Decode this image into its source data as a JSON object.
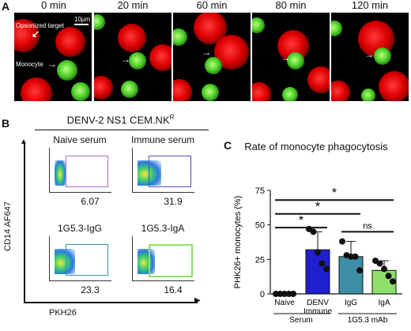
{
  "panelA": {
    "letter": "A",
    "timepoints": [
      "0 min",
      "20 min",
      "60 min",
      "80 min",
      "120 min"
    ],
    "scale_bar": "10μm",
    "label_target": "Opsonized target",
    "label_monocyte": "Monocyte",
    "colors": {
      "target": "#d40000",
      "monocyte": "#4fcf2a",
      "background": "#000000"
    }
  },
  "panelB": {
    "letter": "B",
    "title": "DENV-2 NS1 CEM.NK",
    "title_superscript": "R",
    "y_label": "CD14 AF647",
    "x_label": "PKH26",
    "plots": [
      {
        "title": "Naive serum",
        "value": "6.07",
        "gate_color": "#a66fc9"
      },
      {
        "title": "Immune serum",
        "value": "31.9",
        "gate_color": "#5a4fb5"
      },
      {
        "title": "1G5.3-IgG",
        "value": "23.3",
        "gate_color": "#3d8fa6"
      },
      {
        "title": "1G5.3-IgA",
        "value": "16.4",
        "gate_color": "#8fe06a"
      }
    ]
  },
  "panelC": {
    "letter": "C",
    "group_serum": "Serum",
    "group_mab": "1G5.3 mAb"
  },
  "chart_data": {
    "type": "bar",
    "title": "Rate of monocyte phagocytosis",
    "ylabel": "PHK26+ monocytes (%)",
    "xlabel": "",
    "ylim": [
      0,
      75
    ],
    "yticks": [
      0,
      25,
      50,
      75
    ],
    "categories": [
      "Naive",
      "DENV\nImmune",
      "IgG",
      "IgA"
    ],
    "values": [
      0,
      32,
      27,
      17
    ],
    "errors": [
      0,
      13,
      11,
      7
    ],
    "colors": [
      "#ffffff",
      "#1f1fcf",
      "#3d8fa6",
      "#8fe06a"
    ],
    "points": [
      [
        0,
        0,
        0,
        0,
        0
      ],
      [
        47,
        45,
        30,
        22,
        18
      ],
      [
        38,
        28,
        27,
        27,
        17
      ],
      [
        24,
        22,
        18,
        13,
        9
      ]
    ],
    "significance": [
      {
        "from": 0,
        "to": 3,
        "label": "*"
      },
      {
        "from": 0,
        "to": 2,
        "label": "*"
      },
      {
        "from": 0,
        "to": 1,
        "label": "*"
      },
      {
        "from": 2,
        "to": 3,
        "label": "ns"
      }
    ]
  }
}
